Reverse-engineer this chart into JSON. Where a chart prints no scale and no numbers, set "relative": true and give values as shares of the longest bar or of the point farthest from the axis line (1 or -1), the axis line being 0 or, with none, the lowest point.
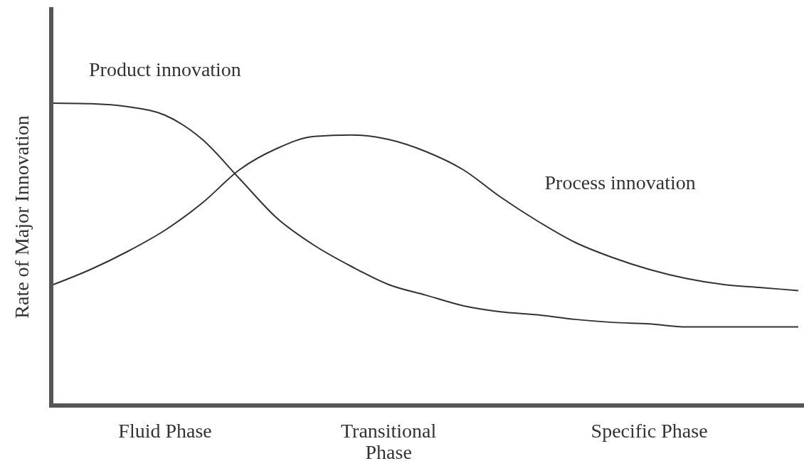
{
  "chart_data": {
    "type": "line",
    "relative": true,
    "ylabel": "Rate of Major Innovation",
    "categories": [
      null,
      null,
      null,
      "Fluid Phase",
      null,
      null,
      null,
      null,
      null,
      "Transitional\nPhase",
      null,
      null,
      null,
      null,
      null,
      null,
      "Specific Phase",
      null,
      null,
      null,
      null
    ],
    "series": [
      {
        "name": "Product innovation",
        "color": "#333333",
        "values": [
          1.0,
          0.998,
          0.988,
          0.96,
          0.88,
          0.75,
          0.62,
          0.53,
          0.46,
          0.4,
          0.365,
          0.33,
          0.31,
          0.3,
          0.285,
          0.275,
          0.27,
          0.26,
          0.26,
          0.26,
          0.26
        ]
      },
      {
        "name": "Process innovation",
        "color": "#333333",
        "values": [
          0.4,
          0.45,
          0.51,
          0.58,
          0.67,
          0.78,
          0.85,
          0.89,
          0.895,
          0.88,
          0.84,
          0.78,
          0.69,
          0.61,
          0.54,
          0.49,
          0.45,
          0.42,
          0.4,
          0.39,
          0.38
        ]
      }
    ],
    "marker": "none",
    "line_style": "solid",
    "legend": false
  }
}
